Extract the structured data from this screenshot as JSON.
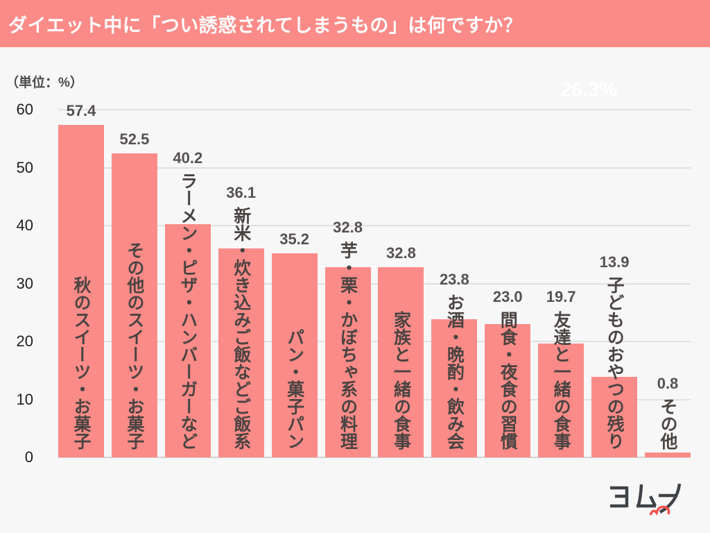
{
  "header": {
    "title": "ダイエット中に「つい誘惑されてしまうもの」は何ですか？"
  },
  "unit_label": "（単位：%）",
  "watermark": "26.3%",
  "logo": {
    "name": "ヨムーノ"
  },
  "colors": {
    "accent_pink": "#fb8b88",
    "header_bg": "#fb8b88",
    "bar_fill": "#fb8b88",
    "value_text": "#565150",
    "category_text": "#4a4442",
    "logo_dark": "#3f4347",
    "logo_red": "#f4514b",
    "background": "#f7f7f8",
    "gridline": "#e0e0e0"
  },
  "chart_data": {
    "type": "bar",
    "title": "ダイエット中に「つい誘惑されてしまうもの」は何ですか？",
    "unit": "%",
    "categories": [
      "秋のスイーツ・お菓子",
      "その他のスイーツ・お菓子",
      "ラーメン・ピザ・ハンバーガーなど",
      "新米・炊き込みご飯などご飯系",
      "パン・菓子パン",
      "芋・栗・かぼちゃ系の料理",
      "家族と一緒の食事",
      "お酒・晩酌・飲み会",
      "間食・夜食の習慣",
      "友達と一緒の食事",
      "子どものおやつの残り",
      "その他"
    ],
    "values": [
      57.4,
      52.5,
      40.2,
      36.1,
      35.2,
      32.8,
      32.8,
      23.8,
      23.0,
      19.7,
      13.9,
      0.8
    ],
    "value_labels": [
      "57.4",
      "52.5",
      "40.2",
      "36.1",
      "35.2",
      "32.8",
      "32.8",
      "23.8",
      "23.0",
      "19.7",
      "13.9",
      "0.8"
    ],
    "xlabel": "",
    "ylabel": "（単位：%）",
    "ylim": [
      0,
      60
    ],
    "yticks": [
      0,
      10,
      20,
      30,
      40,
      50,
      60
    ],
    "grid": true,
    "legend": false,
    "bar_color": "#fb8b88"
  }
}
